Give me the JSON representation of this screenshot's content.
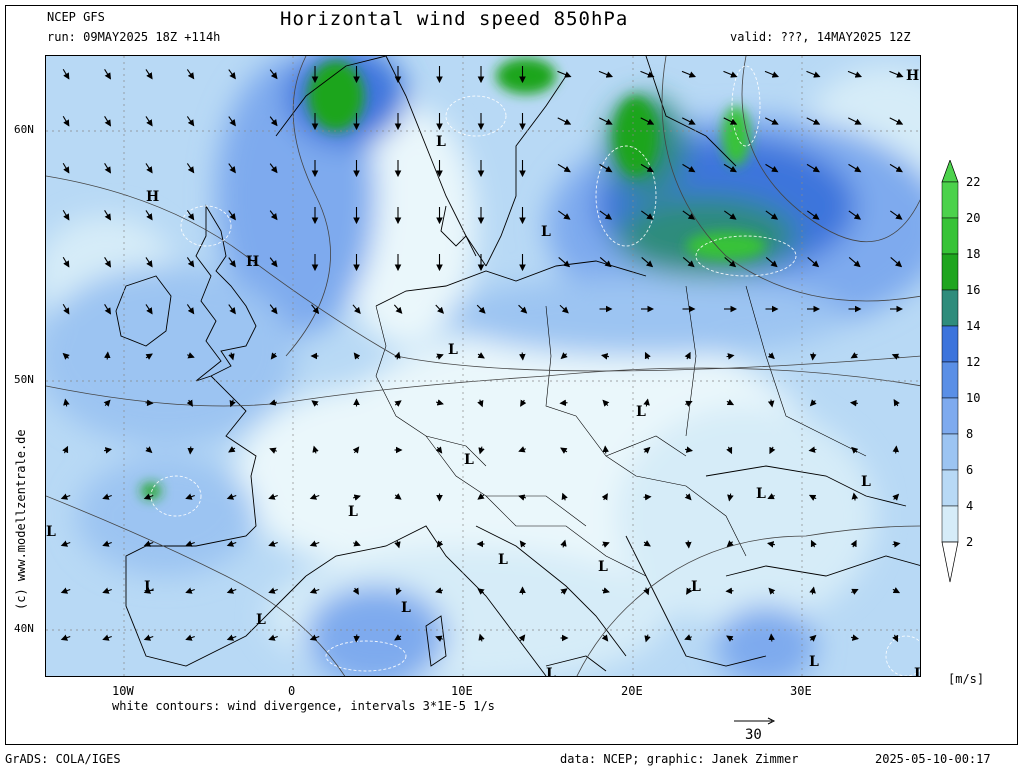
{
  "header": {
    "model": "NCEP GFS",
    "run": "run: 09MAY2025 18Z +114h",
    "title": "Horizontal wind speed 850hPa",
    "valid": "valid: ???, 14MAY2025 12Z"
  },
  "latitude_labels": [
    "60N",
    "50N",
    "40N"
  ],
  "longitude_labels": [
    "10W",
    "0",
    "10E",
    "20E",
    "30E"
  ],
  "pressure_systems": [
    "H",
    "H",
    "H",
    "L",
    "L",
    "L",
    "L",
    "L",
    "L",
    "L",
    "L",
    "L",
    "L",
    "L",
    "L",
    "L",
    "L",
    "L",
    "L",
    "L",
    "L"
  ],
  "colorbar": {
    "labels": [
      "22",
      "20",
      "18",
      "16",
      "14",
      "12",
      "10",
      "8",
      "6",
      "4",
      "2"
    ],
    "colors": [
      "#4cd24c",
      "#37c337",
      "#1fa51f",
      "#2f8c7c",
      "#3c74dc",
      "#5a8fe6",
      "#7eaaee",
      "#9cc4f2",
      "#b8d9f5",
      "#d6ecf8",
      "#eaf7fb"
    ],
    "unit": "[m/s]"
  },
  "footer": {
    "contours_note": "white contours: wind divergence, intervals 3*1E-5 1/s",
    "reference_vector": "30",
    "software": "GrADS: COLA/IGES",
    "credits": "data: NCEP; graphic: Janek Zimmer",
    "timestamp": "2025-05-10-00:17"
  },
  "watermark": "(c) www.modellzentrale.de"
}
